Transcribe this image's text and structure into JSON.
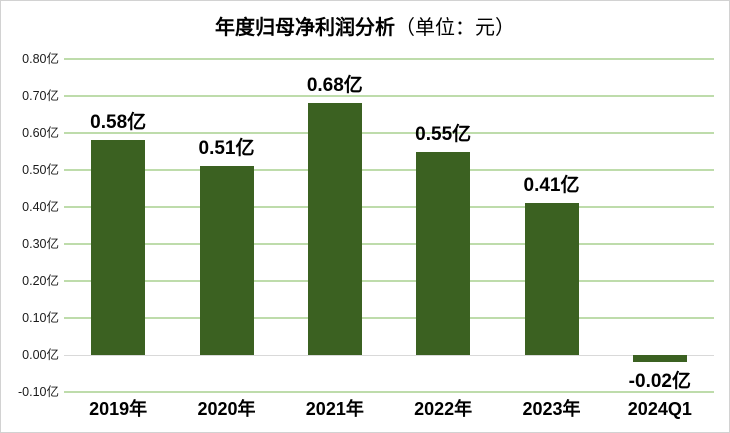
{
  "chart_data": {
    "type": "bar",
    "title": "年度归母净利润分析",
    "title_unit": "（单位：元）",
    "categories": [
      "2019年",
      "2020年",
      "2021年",
      "2022年",
      "2023年",
      "2024Q1"
    ],
    "values": [
      0.58,
      0.51,
      0.68,
      0.55,
      0.41,
      -0.02
    ],
    "value_labels": [
      "0.58亿",
      "0.51亿",
      "0.68亿",
      "0.55亿",
      "0.41亿",
      "-0.02亿"
    ],
    "unit": "亿",
    "ylim": [
      -0.1,
      0.8
    ],
    "y_ticks": [
      {
        "v": 0.8,
        "label": "0.80亿"
      },
      {
        "v": 0.7,
        "label": "0.70亿"
      },
      {
        "v": 0.6,
        "label": "0.60亿"
      },
      {
        "v": 0.5,
        "label": "0.50亿"
      },
      {
        "v": 0.4,
        "label": "0.40亿"
      },
      {
        "v": 0.3,
        "label": "0.30亿"
      },
      {
        "v": 0.2,
        "label": "0.20亿"
      },
      {
        "v": 0.1,
        "label": "0.10亿"
      },
      {
        "v": 0.0,
        "label": "0.00亿"
      },
      {
        "v": -0.1,
        "label": "-0.10亿"
      }
    ],
    "grid": true,
    "legend": "none",
    "colors": {
      "bar": "#3b6121",
      "gridline": "#bedcab",
      "zero_line": "#d9d9d9",
      "text": "#000000",
      "frame_border": "#d2d2d2",
      "background": "#ffffff"
    }
  }
}
